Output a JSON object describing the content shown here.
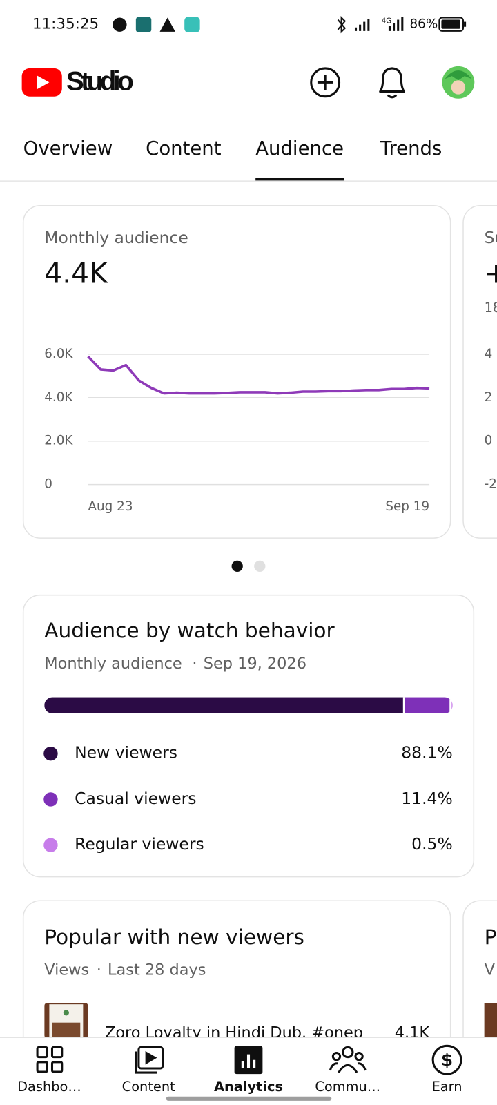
{
  "status_bar": {
    "time": "11:35:25",
    "network": "4G",
    "battery": "86%"
  },
  "header": {
    "logo_text": "Studio"
  },
  "tabs": [
    {
      "label": "Overview"
    },
    {
      "label": "Content"
    },
    {
      "label": "Audience",
      "selected": true
    },
    {
      "label": "Trends"
    }
  ],
  "chart_data": [
    {
      "type": "line",
      "title": "Monthly audience",
      "headline": "4.4K",
      "x": [
        "Aug 23",
        null,
        null,
        null,
        null,
        null,
        null,
        null,
        null,
        null,
        null,
        null,
        null,
        null,
        null,
        null,
        null,
        null,
        null,
        null,
        null,
        null,
        null,
        null,
        null,
        null,
        null,
        "Sep 19"
      ],
      "series": [
        {
          "color": "#8e3ab8",
          "values": [
            5900,
            5300,
            5250,
            5500,
            4800,
            4450,
            4200,
            4230,
            4200,
            4200,
            4200,
            4220,
            4250,
            4250,
            4250,
            4200,
            4230,
            4280,
            4280,
            4300,
            4300,
            4330,
            4350,
            4350,
            4400,
            4400,
            4450,
            4430
          ]
        }
      ],
      "ylim": [
        0,
        6000
      ],
      "yticks": [
        0,
        {
          "value": 2000,
          "label": "2.0K"
        },
        {
          "value": 4000,
          "label": "4.0K"
        },
        {
          "value": 6000,
          "label": "6.0K"
        }
      ],
      "grid": true
    },
    {
      "type": "stacked_bar",
      "title": "Audience by watch behavior",
      "subtitle": "Monthly audience",
      "date": "Sep 19, 2026",
      "xlim": [
        0,
        100
      ],
      "series": [
        {
          "name": "New viewers",
          "color": "#2b0b45",
          "values": [
            88.1
          ],
          "value_labels": [
            "88.1%"
          ]
        },
        {
          "name": "Casual viewers",
          "color": "#7e30b8",
          "values": [
            11.4
          ],
          "value_labels": [
            "11.4%"
          ]
        },
        {
          "name": "Regular viewers",
          "color": "#c77dea",
          "values": [
            0.5
          ],
          "value_labels": [
            "0.5%"
          ]
        }
      ]
    }
  ],
  "peek_card": {
    "title": "Su",
    "headline": "+",
    "subtitle": "18",
    "ylim": [
      -2,
      4
    ],
    "yticks": [
      4,
      2,
      0,
      -2
    ]
  },
  "popular_card": {
    "title": "Popular with new viewers",
    "metric": "Views",
    "period": "Last 28 days",
    "items": [
      {
        "title": "Zoro Loyalty in Hindi Dub. #onep",
        "views": "4.1K"
      }
    ]
  },
  "popular_peek": {
    "title": "P",
    "metric": "V"
  },
  "bottom_nav": [
    {
      "label": "Dashbo…"
    },
    {
      "label": "Content"
    },
    {
      "label": "Analytics",
      "selected": true
    },
    {
      "label": "Commu…"
    },
    {
      "label": "Earn"
    }
  ]
}
